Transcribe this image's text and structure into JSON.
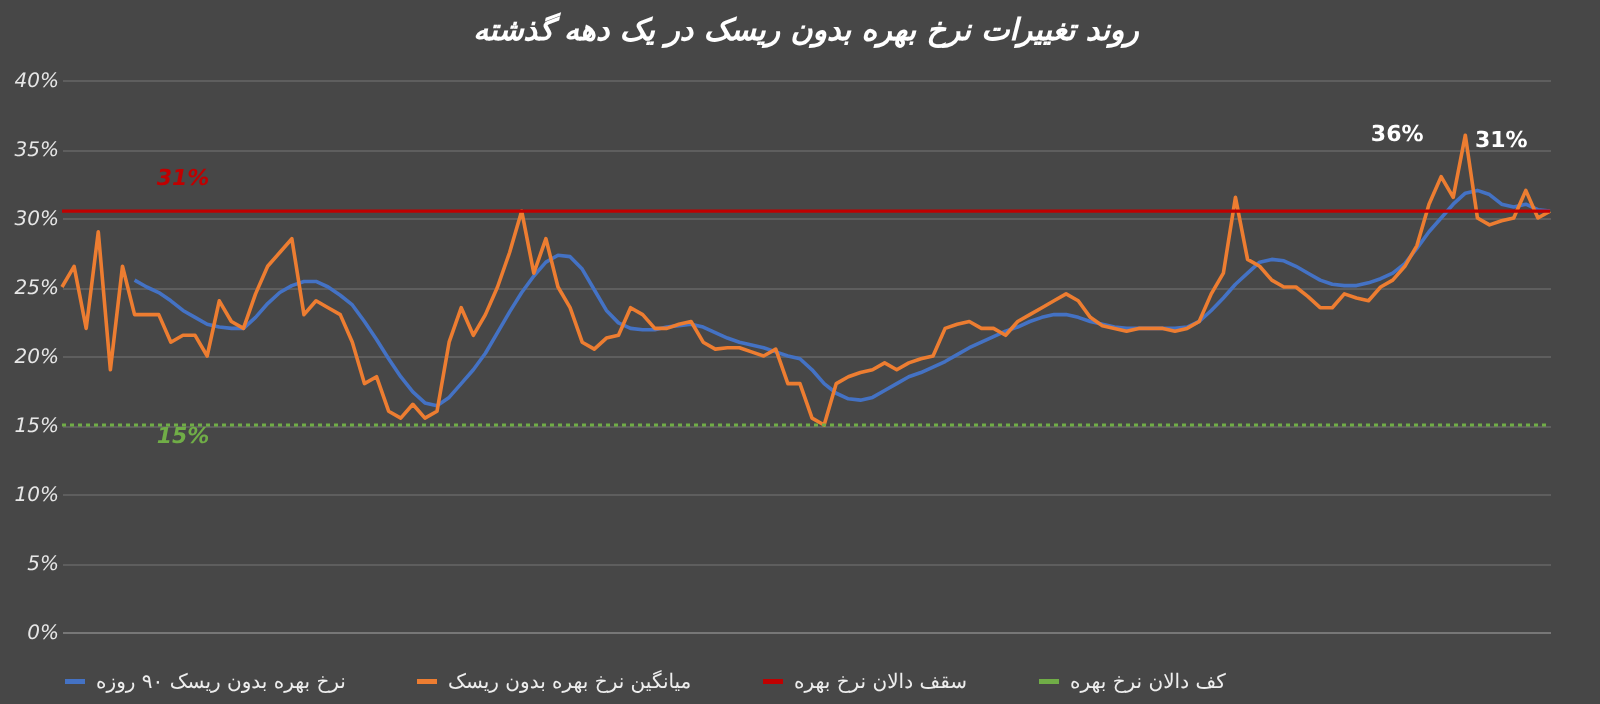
{
  "chart_data": {
    "type": "line",
    "title": "روند تغییرات نرخ بهره بدون ریسک در یک دهه گذشته",
    "categories": [
      null,
      null,
      null,
      null,
      null,
      null,
      null,
      null,
      null,
      null,
      null,
      null,
      null,
      null,
      null,
      null,
      null,
      null,
      null,
      null,
      null,
      null,
      null,
      null,
      null,
      null,
      null,
      null,
      null,
      null,
      null,
      null,
      null,
      null,
      null,
      null,
      null,
      null,
      null,
      null,
      null,
      null,
      null,
      null,
      null,
      null,
      null,
      null,
      null,
      null,
      null,
      null,
      null,
      null,
      null,
      null,
      null,
      null,
      null,
      null,
      null,
      null,
      null,
      null,
      null,
      null,
      null,
      null,
      null,
      null,
      null,
      null,
      null,
      null,
      null,
      null,
      null,
      null,
      null,
      null,
      null,
      null,
      null,
      null,
      null,
      null,
      null,
      null,
      null,
      null,
      null,
      null,
      null,
      null,
      null,
      null,
      null,
      null,
      null,
      null,
      null,
      null,
      null,
      null,
      null,
      null,
      null,
      null,
      null,
      null,
      null,
      null,
      null,
      null,
      null,
      null,
      null,
      null,
      null,
      null,
      null,
      null,
      null,
      null
    ],
    "series": [
      {
        "name": "نرخ بهره بدون ریسک ۹۰ روزه",
        "color": "#4472c4",
        "line_style": "solid",
        "values": [
          null,
          null,
          null,
          null,
          null,
          null,
          25.5,
          25,
          24.6,
          24,
          23.3,
          22.8,
          22.3,
          22.1,
          22,
          22,
          22.8,
          23.8,
          24.6,
          25.1,
          25.4,
          25.4,
          25,
          24.4,
          23.7,
          22.5,
          21.2,
          19.8,
          18.5,
          17.4,
          16.6,
          16.4,
          17,
          18,
          19,
          20.2,
          21.7,
          23.2,
          24.6,
          25.8,
          26.8,
          27.3,
          27.2,
          26.3,
          24.8,
          23.3,
          22.4,
          22,
          21.9,
          21.9,
          22.1,
          22.2,
          22.3,
          22.1,
          21.7,
          21.3,
          21,
          20.8,
          20.6,
          20.3,
          20,
          19.8,
          19,
          18,
          17.3,
          16.9,
          16.8,
          17,
          17.5,
          18,
          18.5,
          18.8,
          19.2,
          19.6,
          20.1,
          20.6,
          21,
          21.4,
          21.8,
          22.1,
          22.5,
          22.8,
          23,
          23,
          22.8,
          22.5,
          22.3,
          22.1,
          22,
          22,
          22,
          22,
          22,
          22.1,
          22.5,
          23.3,
          24.2,
          25.2,
          26,
          26.8,
          27,
          26.9,
          26.5,
          26,
          25.5,
          25.2,
          25.1,
          25.1,
          25.3,
          25.6,
          26,
          26.7,
          27.8,
          29,
          30,
          31,
          31.8,
          32,
          31.7,
          31,
          30.8,
          31,
          30.6,
          30.5
        ]
      },
      {
        "name": "میانگین نرخ بهره بدون ریسک",
        "color": "#ed7d31",
        "line_style": "solid",
        "values": [
          25,
          26.5,
          22,
          29,
          19,
          26.5,
          23,
          23,
          23,
          21,
          21.5,
          21.5,
          20,
          24,
          22.5,
          22,
          24.5,
          26.5,
          27.5,
          28.5,
          23,
          24,
          23.5,
          23,
          21,
          18,
          18.5,
          16,
          15.5,
          16.5,
          15.5,
          16,
          21,
          23.5,
          21.5,
          23,
          25,
          27.5,
          30.5,
          26,
          28.5,
          25,
          23.5,
          21,
          20.5,
          21.3,
          21.5,
          23.5,
          23,
          22,
          22,
          22.3,
          22.5,
          21,
          20.5,
          20.6,
          20.6,
          20.3,
          20,
          20.5,
          18,
          18,
          15.5,
          15,
          18,
          18.5,
          18.8,
          19,
          19.5,
          19,
          19.5,
          19.8,
          20,
          22,
          22.3,
          22.5,
          22,
          22,
          21.5,
          22.5,
          23,
          23.5,
          24,
          24.5,
          24,
          22.8,
          22.2,
          22,
          21.8,
          22,
          22,
          22,
          21.8,
          22,
          22.5,
          24.5,
          26,
          31.5,
          27,
          26.5,
          25.5,
          25,
          25,
          24.3,
          23.5,
          23.5,
          24.5,
          24.2,
          24,
          25,
          25.5,
          26.5,
          28,
          31,
          33,
          31.5,
          36,
          30,
          29.5,
          29.8,
          30,
          32,
          30,
          30.5
        ]
      },
      {
        "name": "سقف دالان نرخ بهره",
        "color": "#c00000",
        "line_style": "solid",
        "values": [
          30.5,
          30.5,
          30.5,
          30.5,
          30.5,
          30.5,
          30.5,
          30.5,
          30.5,
          30.5,
          30.5,
          30.5,
          30.5,
          30.5,
          30.5,
          30.5,
          30.5,
          30.5,
          30.5,
          30.5,
          30.5,
          30.5,
          30.5,
          30.5,
          30.5,
          30.5,
          30.5,
          30.5,
          30.5,
          30.5,
          30.5,
          30.5,
          30.5,
          30.5,
          30.5,
          30.5,
          30.5,
          30.5,
          30.5,
          30.5,
          30.5,
          30.5,
          30.5,
          30.5,
          30.5,
          30.5,
          30.5,
          30.5,
          30.5,
          30.5,
          30.5,
          30.5,
          30.5,
          30.5,
          30.5,
          30.5,
          30.5,
          30.5,
          30.5,
          30.5,
          30.5,
          30.5,
          30.5,
          30.5,
          30.5,
          30.5,
          30.5,
          30.5,
          30.5,
          30.5,
          30.5,
          30.5,
          30.5,
          30.5,
          30.5,
          30.5,
          30.5,
          30.5,
          30.5,
          30.5,
          30.5,
          30.5,
          30.5,
          30.5,
          30.5,
          30.5,
          30.5,
          30.5,
          30.5,
          30.5,
          30.5,
          30.5,
          30.5,
          30.5,
          30.5,
          30.5,
          30.5,
          30.5,
          30.5,
          30.5,
          30.5,
          30.5,
          30.5,
          30.5,
          30.5,
          30.5,
          30.5,
          30.5,
          30.5,
          30.5,
          30.5,
          30.5,
          30.5,
          30.5,
          30.5,
          30.5,
          30.5,
          30.5,
          30.5,
          30.5,
          30.5,
          30.5,
          30.5,
          30.5
        ]
      },
      {
        "name": "کف دالان نرخ بهره",
        "color": "#70ad47",
        "line_style": "dotted",
        "values": [
          15,
          15,
          15,
          15,
          15,
          15,
          15,
          15,
          15,
          15,
          15,
          15,
          15,
          15,
          15,
          15,
          15,
          15,
          15,
          15,
          15,
          15,
          15,
          15,
          15,
          15,
          15,
          15,
          15,
          15,
          15,
          15,
          15,
          15,
          15,
          15,
          15,
          15,
          15,
          15,
          15,
          15,
          15,
          15,
          15,
          15,
          15,
          15,
          15,
          15,
          15,
          15,
          15,
          15,
          15,
          15,
          15,
          15,
          15,
          15,
          15,
          15,
          15,
          15,
          15,
          15,
          15,
          15,
          15,
          15,
          15,
          15,
          15,
          15,
          15,
          15,
          15,
          15,
          15,
          15,
          15,
          15,
          15,
          15,
          15,
          15,
          15,
          15,
          15,
          15,
          15,
          15,
          15,
          15,
          15,
          15,
          15,
          15,
          15,
          15,
          15,
          15,
          15,
          15,
          15,
          15,
          15,
          15,
          15,
          15,
          15,
          15,
          15,
          15,
          15,
          15,
          15,
          15,
          15,
          15,
          15,
          15,
          15,
          15
        ]
      }
    ],
    "ylim": [
      0,
      40
    ],
    "yticks": [
      {
        "value": 0,
        "label": "0%"
      },
      {
        "value": 5,
        "label": "5%"
      },
      {
        "value": 10,
        "label": "10%"
      },
      {
        "value": 15,
        "label": "15%"
      },
      {
        "value": 20,
        "label": "20%"
      },
      {
        "value": 25,
        "label": "25%"
      },
      {
        "value": 30,
        "label": "30%"
      },
      {
        "value": 35,
        "label": "35%"
      },
      {
        "value": 40,
        "label": "40%"
      }
    ],
    "annotations": [
      {
        "text": "31%",
        "y": 30.5
      },
      {
        "text": "15%",
        "y": 15
      },
      "36%",
      "31%"
    ],
    "grid": "y",
    "legend": "bottom",
    "tick_labels": "y"
  }
}
